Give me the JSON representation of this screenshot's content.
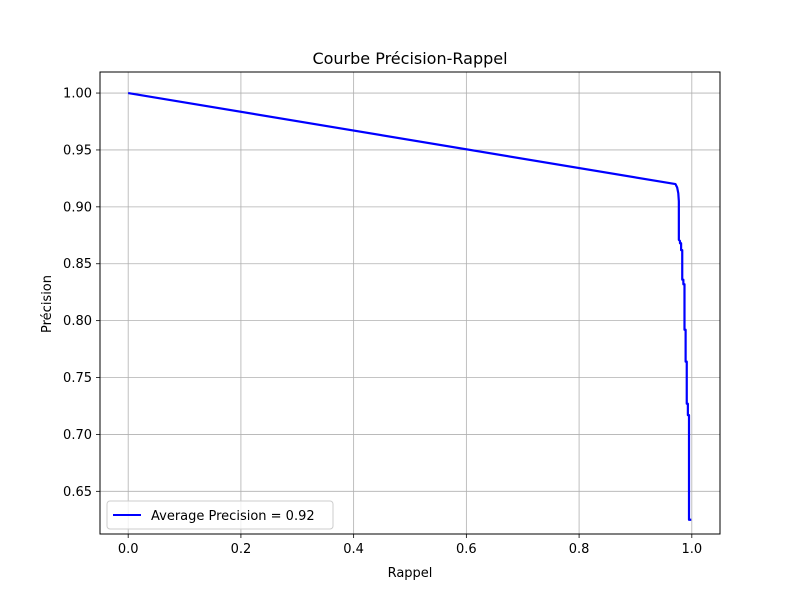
{
  "chart_data": {
    "type": "line",
    "title": "Courbe Précision-Rappel",
    "xlabel": "Rappel",
    "ylabel": "Précision",
    "xlim": [
      -0.05,
      1.05
    ],
    "ylim": [
      0.6125,
      1.0185
    ],
    "xticks": [
      "0.0",
      "0.2",
      "0.4",
      "0.6",
      "0.8",
      "1.0"
    ],
    "yticks": [
      "0.65",
      "0.70",
      "0.75",
      "0.80",
      "0.85",
      "0.90",
      "0.95",
      "1.00"
    ],
    "grid": true,
    "legend_position": "bottom-left",
    "series": [
      {
        "name": "Average Precision = 0.92",
        "color": "#0000ff",
        "x": [
          0.0,
          0.971,
          0.974,
          0.976,
          0.977,
          0.977,
          0.979,
          0.979,
          0.981,
          0.981,
          0.983,
          0.983,
          0.985,
          0.985,
          0.987,
          0.987,
          0.989,
          0.989,
          0.991,
          0.991,
          0.993,
          0.993,
          0.995,
          0.995,
          0.997,
          0.997,
          0.999,
          0.999
        ],
        "y": [
          1.0,
          0.92,
          0.917,
          0.912,
          0.905,
          0.871,
          0.87,
          0.868,
          0.868,
          0.862,
          0.862,
          0.836,
          0.836,
          0.832,
          0.832,
          0.792,
          0.792,
          0.764,
          0.764,
          0.727,
          0.727,
          0.717,
          0.717,
          0.625,
          0.625,
          0.625,
          0.625,
          0.625
        ]
      }
    ]
  }
}
